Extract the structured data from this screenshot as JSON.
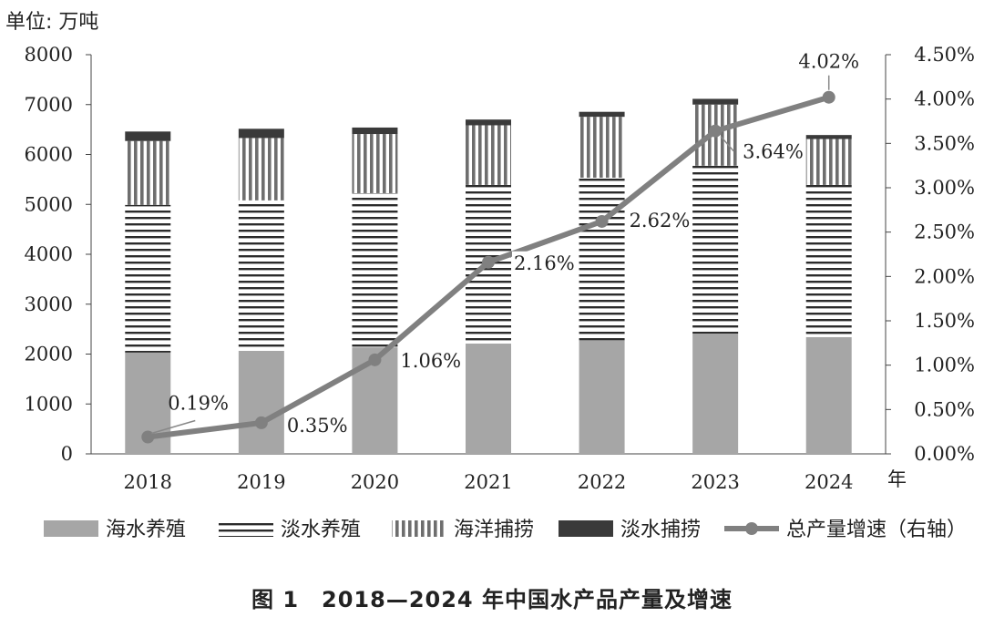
{
  "chart_data": {
    "type": "bar",
    "subtype": "stacked-bar-with-line",
    "unit_label": "单位: 万吨",
    "x_unit_label": "年",
    "caption": "图 1　2018—2024 年中国水产品产量及增速",
    "categories": [
      "2018",
      "2019",
      "2020",
      "2021",
      "2022",
      "2023",
      "2024"
    ],
    "ylim": [
      0,
      8000
    ],
    "y_ticks": [
      0,
      1000,
      2000,
      3000,
      4000,
      5000,
      6000,
      7000,
      8000
    ],
    "y2lim": [
      0,
      4.5
    ],
    "y2_ticks": [
      "0.00%",
      "0.50%",
      "1.00%",
      "1.50%",
      "2.00%",
      "2.50%",
      "3.00%",
      "3.50%",
      "4.00%",
      "4.50%"
    ],
    "series": [
      {
        "name": "海水养殖",
        "values": [
          2030,
          2065,
          2135,
          2210,
          2275,
          2395,
          2340
        ],
        "pattern": "solid-gray",
        "color": "#a6a6a6"
      },
      {
        "name": "淡水养殖",
        "values": [
          2960,
          3015,
          3090,
          3180,
          3260,
          3380,
          3050
        ],
        "pattern": "horizontal-lines",
        "color": "#2b2b2b"
      },
      {
        "name": "海洋捕捞",
        "values": [
          1280,
          1250,
          1185,
          1195,
          1220,
          1225,
          920
        ],
        "pattern": "vertical-lines",
        "color": "#6e6e6e"
      },
      {
        "name": "淡水捕捞",
        "values": [
          190,
          185,
          130,
          115,
          100,
          115,
          80
        ],
        "pattern": "solid-dark",
        "color": "#3a3a3a"
      }
    ],
    "line_series": {
      "name": "总产量增速（右轴）",
      "axis": "right",
      "values": [
        0.19,
        0.35,
        1.06,
        2.16,
        2.62,
        3.64,
        4.02
      ],
      "labels": [
        "0.19%",
        "0.35%",
        "1.06%",
        "2.16%",
        "2.62%",
        "3.64%",
        "4.02%"
      ],
      "color": "#808080"
    },
    "legend_placement": "bottom",
    "grid": false
  }
}
